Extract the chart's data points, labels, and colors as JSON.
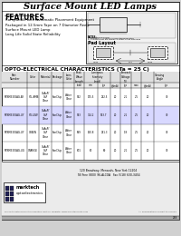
{
  "title": "Surface Mount LED Lamps",
  "features_title": "FEATURES",
  "features": [
    "Compatible with Automatic Placement Equipment",
    "Packaged in 12.5mm Tape on 7 Diameter Reels",
    "Surface Mount LED Lamp",
    "Long Life Solid State Reliability"
  ],
  "table_title": "OPTO-ELECTRICAL CHARACTERISTICS (Ta = 25 C)",
  "rows": [
    [
      "MTSM3302AG-AY",
      "YEL-AMB",
      "GaAsP/\nGaP\nClear",
      "SunChip",
      "Water\nClear",
      "592",
      "175.5",
      "292.5",
      "20",
      "2.1",
      "2.5",
      "20",
      "30"
    ],
    [
      "MTSM3302AG-UY",
      "YELLOW",
      "GaAsP/\nGaP\nClear",
      "SunChip",
      "Water\nClear",
      "593",
      "314.2",
      "523.7",
      "20",
      "2.1",
      "2.5",
      "20",
      "30"
    ],
    [
      "MTSM3302AG-UY",
      "GREEN",
      "GaAsP/\nGaP\nClear",
      "SunChip",
      "Water\nClear",
      "569",
      "150.8",
      "251.3",
      "20",
      "1.8",
      "2.5",
      "20",
      "30"
    ],
    [
      "MTSM3302AG-UG",
      "ORANGE",
      "GaAsP/\nGaP\nClear",
      "SunChip",
      "Water\nClear",
      "601",
      "60",
      "90",
      "20",
      "2.1",
      "2.5",
      "20",
      "30"
    ]
  ],
  "highlight_row": 1,
  "footer_line1": "120 Broadway, Menands, New York 12204",
  "footer_line2": "Toll Free (800) 96-ALCOA   Fax (518) 630-3454",
  "footer_note": "For up to date product information visit our website: www.marktechopto.com",
  "footer_note2": "All specifications subject to change",
  "bg_color": "#d0d0d0",
  "white": "#ffffff",
  "black": "#000000",
  "near_white": "#f2f2f2",
  "light_gray": "#c8c8c8",
  "mid_gray": "#888888"
}
